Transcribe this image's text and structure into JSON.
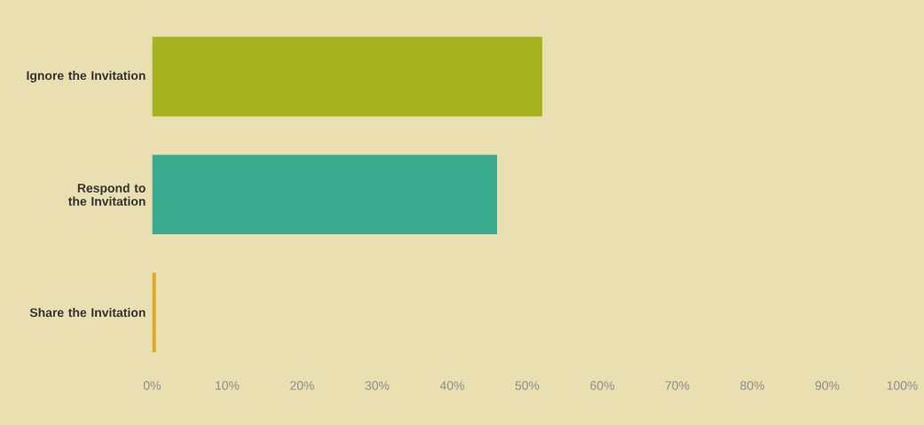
{
  "chart_data": {
    "type": "bar",
    "orientation": "horizontal",
    "categories": [
      "Ignore the Invitation",
      "Respond to the Invitation",
      "Share the Invitation"
    ],
    "values": [
      52,
      46,
      0.5
    ],
    "colors": [
      "#a6b21e",
      "#3aaa8e",
      "#e0a820"
    ],
    "xlim": [
      0,
      100
    ],
    "xticks": [
      {
        "value": 0,
        "label": "0%"
      },
      {
        "value": 10,
        "label": "10%"
      },
      {
        "value": 20,
        "label": "20%"
      },
      {
        "value": 30,
        "label": "30%"
      },
      {
        "value": 40,
        "label": "40%"
      },
      {
        "value": 50,
        "label": "50%"
      },
      {
        "value": 60,
        "label": "60%"
      },
      {
        "value": 70,
        "label": "70%"
      },
      {
        "value": 80,
        "label": "80%"
      },
      {
        "value": 90,
        "label": "90%"
      },
      {
        "value": 100,
        "label": "100%"
      }
    ]
  }
}
